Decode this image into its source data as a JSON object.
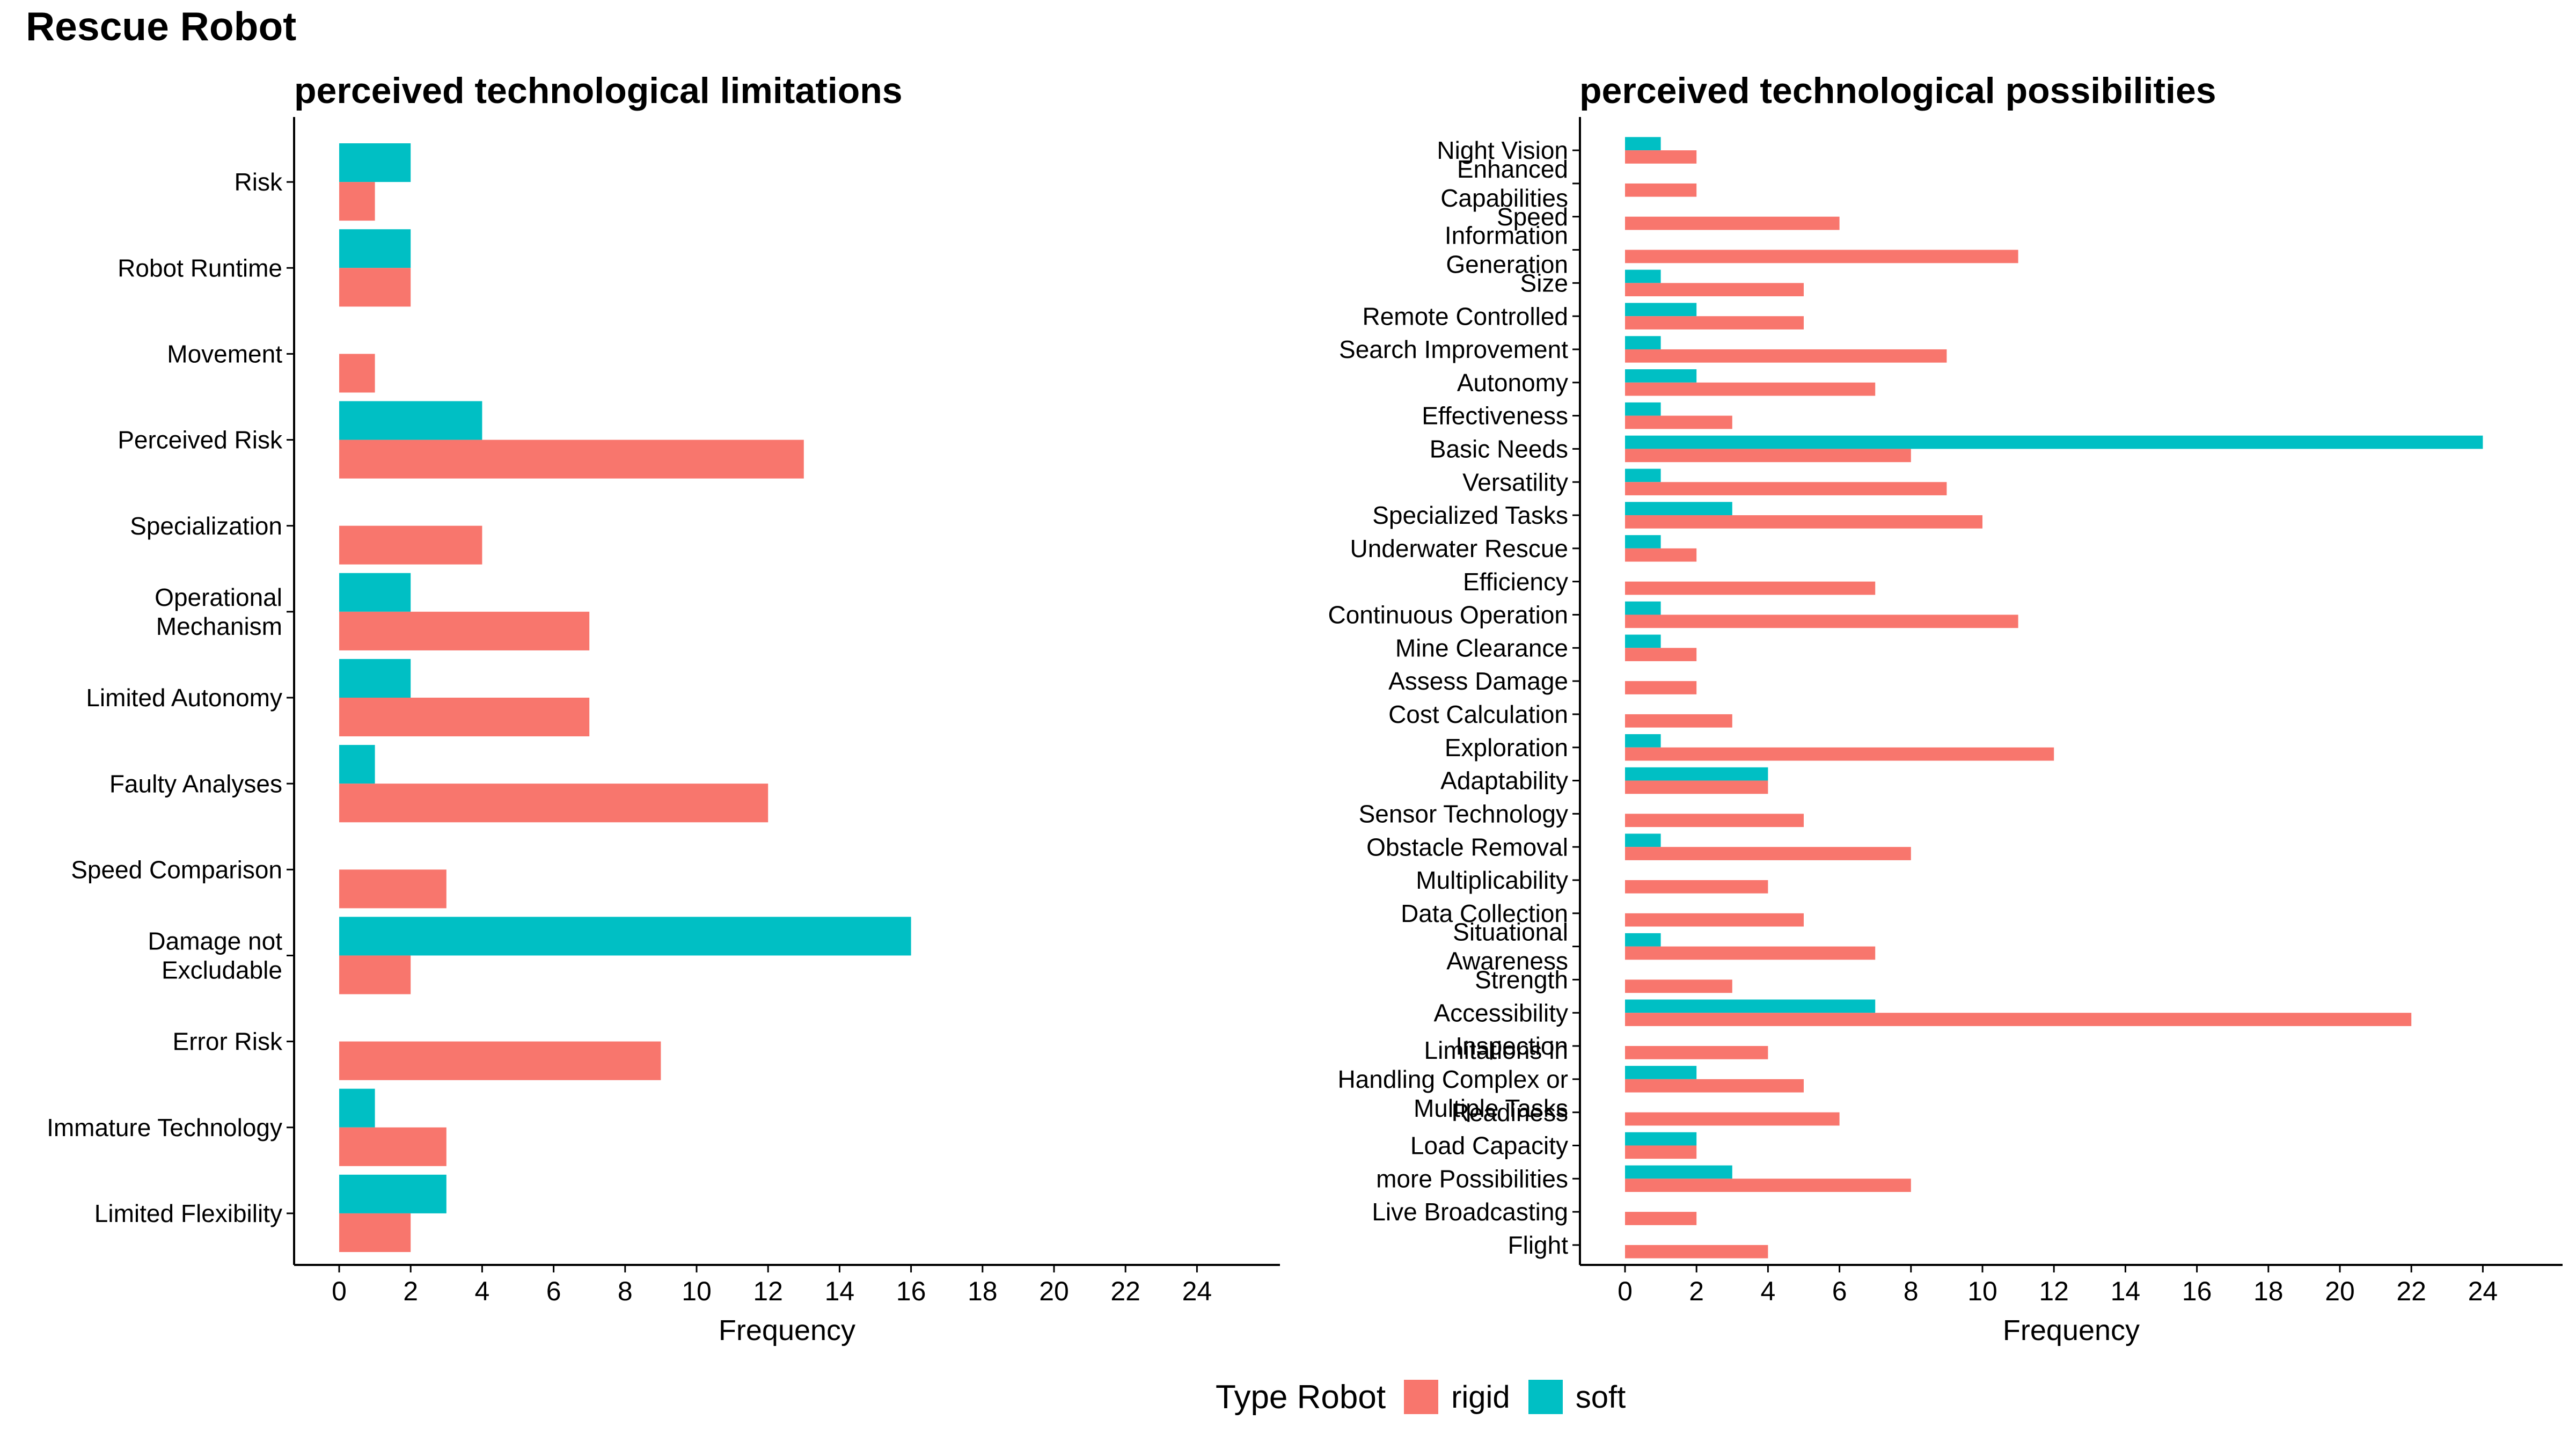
{
  "main_title": "Rescue Robot",
  "colors": {
    "rigid": "#F8766D",
    "soft": "#00BFC4",
    "axis": "#000000"
  },
  "legend": {
    "title": "Type Robot",
    "items": [
      "rigid",
      "soft"
    ]
  },
  "chart_data": [
    {
      "type": "bar",
      "orientation": "horizontal",
      "title": "perceived technological limitations",
      "xlabel": "Frequency",
      "ylabel": "",
      "xlim": [
        0,
        24
      ],
      "xticks": [
        "0",
        "2",
        "4",
        "6",
        "8",
        "10",
        "12",
        "14",
        "16",
        "18",
        "20",
        "22",
        "24"
      ],
      "grid": false,
      "categories": [
        "Risk",
        "Robot Runtime",
        "Movement",
        "Perceived Risk",
        "Specialization",
        "Operational Mechanism",
        "Limited Autonomy",
        "Faulty Analyses",
        "Speed Comparison",
        "Damage not Excludable",
        "Error Risk",
        "Immature Technology",
        "Limited Flexibility"
      ],
      "category_lines": [
        [
          "Risk"
        ],
        [
          "Robot Runtime"
        ],
        [
          "Movement"
        ],
        [
          "Perceived Risk"
        ],
        [
          "Specialization"
        ],
        [
          "Operational",
          "Mechanism"
        ],
        [
          "Limited Autonomy"
        ],
        [
          "Faulty Analyses"
        ],
        [
          "Speed Comparison"
        ],
        [
          "Damage not",
          "Excludable"
        ],
        [
          "Error Risk"
        ],
        [
          "Immature Technology"
        ],
        [
          "Limited Flexibility"
        ]
      ],
      "series": [
        {
          "name": "rigid",
          "values": [
            1,
            2,
            1,
            13,
            4,
            7,
            7,
            12,
            3,
            2,
            9,
            3,
            2
          ]
        },
        {
          "name": "soft",
          "values": [
            2,
            2,
            0,
            4,
            0,
            2,
            2,
            1,
            0,
            16,
            0,
            1,
            3
          ]
        }
      ]
    },
    {
      "type": "bar",
      "orientation": "horizontal",
      "title": "perceived technological possibilities",
      "xlabel": "Frequency",
      "ylabel": "",
      "xlim": [
        0,
        24
      ],
      "xticks": [
        "0",
        "2",
        "4",
        "6",
        "8",
        "10",
        "12",
        "14",
        "16",
        "18",
        "20",
        "22",
        "24"
      ],
      "grid": false,
      "categories": [
        "Night Vision",
        "Enhanced Capabilities",
        "Speed",
        "Information Generation",
        "Size",
        "Remote Controlled",
        "Search Improvement",
        "Autonomy",
        "Effectiveness",
        "Basic Needs",
        "Versatility",
        "Specialized Tasks",
        "Underwater Rescue",
        "Efficiency",
        "Continuous Operation",
        "Mine Clearance",
        "Assess Damage",
        "Cost Calculation",
        "Exploration",
        "Adaptability",
        "Sensor Technology",
        "Obstacle Removal",
        "Multiplicability",
        "Data Collection",
        "Situational Awareness",
        "Strength",
        "Accessibility",
        "Inspection",
        "Limitations in Handling Complex or Multiple Tasks",
        "Readiness",
        "Load Capacity",
        "more Possibilities",
        "Live Broadcasting",
        "Flight"
      ],
      "category_lines": [
        [
          "Night Vision"
        ],
        [
          "Enhanced",
          "Capabilities"
        ],
        [
          "Speed"
        ],
        [
          "Information",
          "Generation"
        ],
        [
          "Size"
        ],
        [
          "Remote Controlled"
        ],
        [
          "Search Improvement"
        ],
        [
          "Autonomy"
        ],
        [
          "Effectiveness"
        ],
        [
          "Basic Needs"
        ],
        [
          "Versatility"
        ],
        [
          "Specialized Tasks"
        ],
        [
          "Underwater Rescue"
        ],
        [
          "Efficiency"
        ],
        [
          "Continuous Operation"
        ],
        [
          "Mine Clearance"
        ],
        [
          "Assess Damage"
        ],
        [
          "Cost Calculation"
        ],
        [
          "Exploration"
        ],
        [
          "Adaptability"
        ],
        [
          "Sensor Technology"
        ],
        [
          "Obstacle Removal"
        ],
        [
          "Multiplicability"
        ],
        [
          "Data Collection"
        ],
        [
          "Situational",
          "Awareness"
        ],
        [
          "Strength"
        ],
        [
          "Accessibility"
        ],
        [
          "Inspection"
        ],
        [
          "Limitations in",
          "Handling Complex or",
          "Multiple Tasks"
        ],
        [
          "Readiness"
        ],
        [
          "Load Capacity"
        ],
        [
          "more Possibilities"
        ],
        [
          "Live Broadcasting"
        ],
        [
          "Flight"
        ]
      ],
      "series": [
        {
          "name": "rigid",
          "values": [
            2,
            2,
            6,
            11,
            5,
            5,
            9,
            7,
            3,
            8,
            9,
            10,
            2,
            7,
            11,
            2,
            2,
            3,
            12,
            4,
            5,
            8,
            4,
            5,
            7,
            3,
            22,
            4,
            5,
            6,
            2,
            8,
            2,
            4
          ]
        },
        {
          "name": "soft",
          "values": [
            1,
            0,
            0,
            0,
            1,
            2,
            1,
            2,
            1,
            24,
            1,
            3,
            1,
            0,
            1,
            1,
            0,
            0,
            1,
            4,
            0,
            1,
            0,
            0,
            1,
            0,
            7,
            0,
            2,
            0,
            2,
            3,
            0,
            0
          ]
        }
      ]
    }
  ]
}
